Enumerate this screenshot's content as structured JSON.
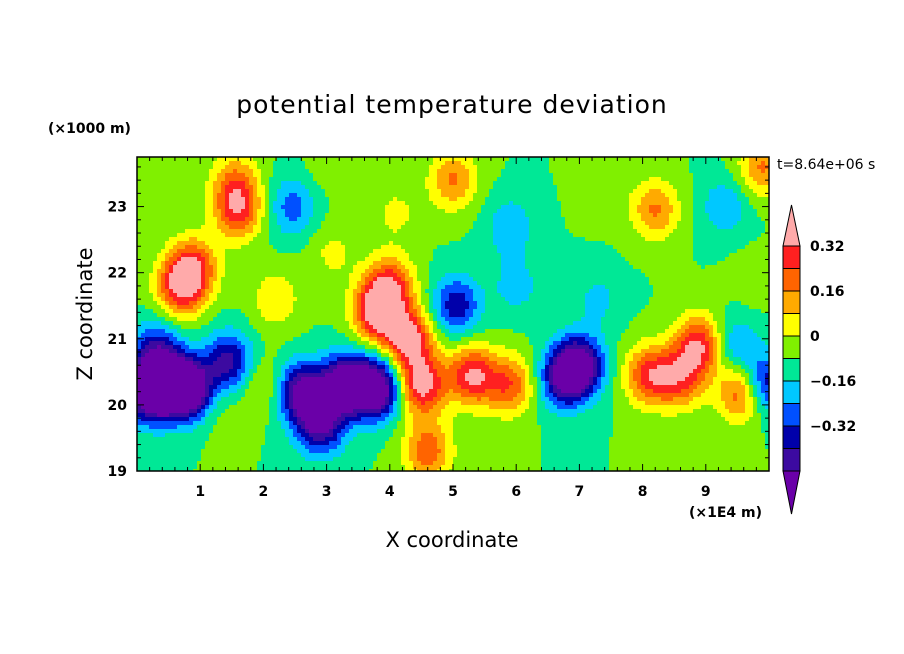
{
  "chart_data": {
    "type": "heatmap",
    "title": "potential temperature deviation",
    "xlabel": "X coordinate",
    "ylabel": "Z coordinate",
    "x_unit": "(×1E4 m)",
    "y_unit": "(×1000 m)",
    "time_label": "t=8.64e+06 s",
    "xlim": [
      0,
      10
    ],
    "ylim": [
      19,
      23.75
    ],
    "x_ticks": [
      "1",
      "2",
      "3",
      "4",
      "5",
      "6",
      "7",
      "8",
      "9"
    ],
    "y_ticks": [
      "19",
      "20",
      "21",
      "22",
      "23"
    ],
    "colorbar": {
      "levels": [
        -0.48,
        -0.4,
        -0.32,
        -0.24,
        -0.16,
        -0.08,
        0,
        0.08,
        0.16,
        0.24,
        0.32,
        0.4
      ],
      "tick_labels": [
        "0.32",
        "0.16",
        "0",
        "−0.16",
        "−0.32"
      ],
      "colors": [
        "#6a00a8",
        "#3c0aa0",
        "#0000aa",
        "#0050ff",
        "#00c8ff",
        "#00e896",
        "#80f000",
        "#ffff00",
        "#ffaa00",
        "#ff6400",
        "#ff2020",
        "#ffaaaa"
      ]
    },
    "features": [
      {
        "x": 0.2,
        "z": 20.2,
        "value": -0.55
      },
      {
        "x": 0.6,
        "z": 20.3,
        "value": -0.5
      },
      {
        "x": 0.9,
        "z": 20.2,
        "value": -0.4
      },
      {
        "x": 0.3,
        "z": 20.8,
        "value": -0.3
      },
      {
        "x": 0.7,
        "z": 21.8,
        "value": 0.4
      },
      {
        "x": 0.9,
        "z": 22.1,
        "value": 0.3
      },
      {
        "x": 1.6,
        "z": 22.95,
        "value": 0.35
      },
      {
        "x": 1.55,
        "z": 23.4,
        "value": 0.2
      },
      {
        "x": 1.45,
        "z": 20.65,
        "value": -0.35
      },
      {
        "x": 1.2,
        "z": 20.0,
        "value": 0.1
      },
      {
        "x": 2.0,
        "z": 20.3,
        "value": 0.12
      },
      {
        "x": 2.2,
        "z": 21.6,
        "value": 0.15
      },
      {
        "x": 2.6,
        "z": 20.2,
        "value": -0.45
      },
      {
        "x": 2.9,
        "z": 19.7,
        "value": -0.4
      },
      {
        "x": 3.3,
        "z": 20.3,
        "value": -0.55
      },
      {
        "x": 3.8,
        "z": 20.25,
        "value": -0.55
      },
      {
        "x": 2.45,
        "z": 23.0,
        "value": -0.2
      },
      {
        "x": 3.1,
        "z": 22.3,
        "value": 0.1
      },
      {
        "x": 4.0,
        "z": 21.8,
        "value": 0.35
      },
      {
        "x": 3.8,
        "z": 21.4,
        "value": 0.45
      },
      {
        "x": 4.3,
        "z": 21.0,
        "value": 0.45
      },
      {
        "x": 4.5,
        "z": 20.3,
        "value": 0.45
      },
      {
        "x": 4.6,
        "z": 19.3,
        "value": 0.3
      },
      {
        "x": 4.1,
        "z": 22.9,
        "value": 0.1
      },
      {
        "x": 5.05,
        "z": 21.5,
        "value": -0.3
      },
      {
        "x": 5.3,
        "z": 20.45,
        "value": 0.4
      },
      {
        "x": 5.9,
        "z": 20.3,
        "value": 0.3
      },
      {
        "x": 5.0,
        "z": 23.4,
        "value": 0.25
      },
      {
        "x": 7.0,
        "z": 20.6,
        "value": -0.45
      },
      {
        "x": 6.75,
        "z": 20.4,
        "value": -0.35
      },
      {
        "x": 6.0,
        "z": 21.8,
        "value": -0.12
      },
      {
        "x": 5.9,
        "z": 22.7,
        "value": -0.15
      },
      {
        "x": 8.1,
        "z": 20.45,
        "value": 0.35
      },
      {
        "x": 8.9,
        "z": 20.9,
        "value": 0.4
      },
      {
        "x": 8.6,
        "z": 20.4,
        "value": 0.3
      },
      {
        "x": 8.2,
        "z": 22.95,
        "value": 0.25
      },
      {
        "x": 9.3,
        "z": 23.0,
        "value": -0.15
      },
      {
        "x": 7.4,
        "z": 23.3,
        "value": 0.05
      },
      {
        "x": 7.3,
        "z": 21.6,
        "value": -0.1
      },
      {
        "x": 9.6,
        "z": 20.2,
        "value": 0.4
      },
      {
        "x": 9.9,
        "z": 20.3,
        "value": -0.4
      },
      {
        "x": 9.45,
        "z": 20.9,
        "value": -0.18
      },
      {
        "x": 9.9,
        "z": 23.6,
        "value": 0.25
      },
      {
        "x": 9.75,
        "z": 21.9,
        "value": 0.05
      },
      {
        "x": 0.2,
        "z": 23.3,
        "value": 0.05
      },
      {
        "x": 3.0,
        "z": 23.6,
        "value": 0.05
      }
    ]
  }
}
